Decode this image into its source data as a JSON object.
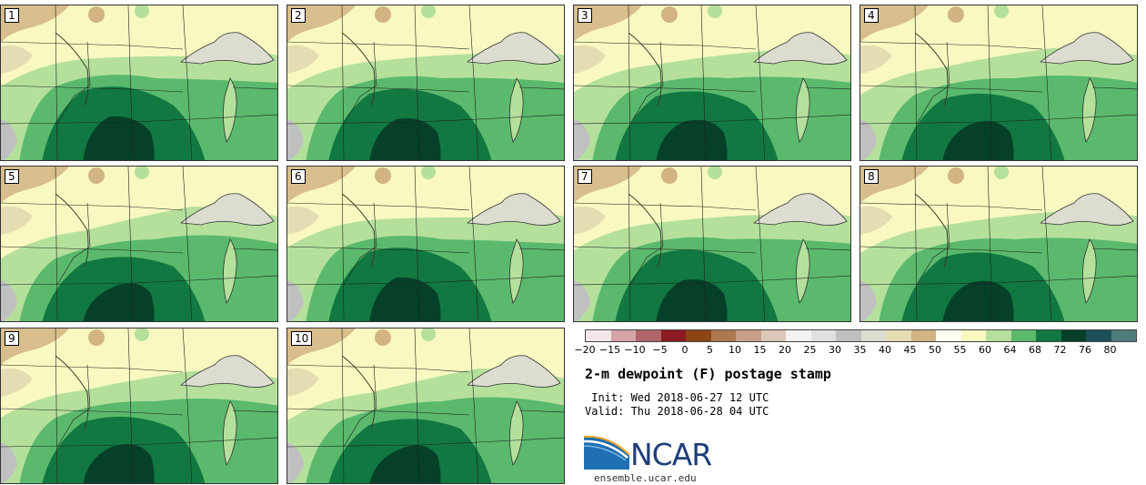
{
  "panels": [
    "1",
    "2",
    "3",
    "4",
    "5",
    "6",
    "7",
    "8",
    "9",
    "10"
  ],
  "colorbar": {
    "colors": [
      "#f5e6ea",
      "#d6a3a8",
      "#b06468",
      "#8b1a22",
      "#8b4513",
      "#b07850",
      "#c8a088",
      "#dcc8b8",
      "#f2f2f2",
      "#e0e0e0",
      "#c0c0c0",
      "#dcdcd0",
      "#e6dcb4",
      "#d2b482",
      "#fffff0",
      "#f8f8c0",
      "#b4e09c",
      "#5ab96c",
      "#107840",
      "#064028",
      "#1e505a",
      "#4e7c7c"
    ],
    "ticks": [
      "−20",
      "−15",
      "−10",
      "−5",
      "0",
      "5",
      "10",
      "15",
      "20",
      "25",
      "30",
      "35",
      "40",
      "45",
      "50",
      "55",
      "60",
      "64",
      "68",
      "72",
      "76",
      "80"
    ],
    "units": "dewpoint (F)"
  },
  "title": "2-m dewpoint (F) postage stamp",
  "init": " Init: Wed 2018-06-27 12 UTC",
  "valid": "Valid: Thu 2018-06-28 04 UTC",
  "logo": {
    "text": "NCAR",
    "url": "ensemble.ucar.edu"
  }
}
